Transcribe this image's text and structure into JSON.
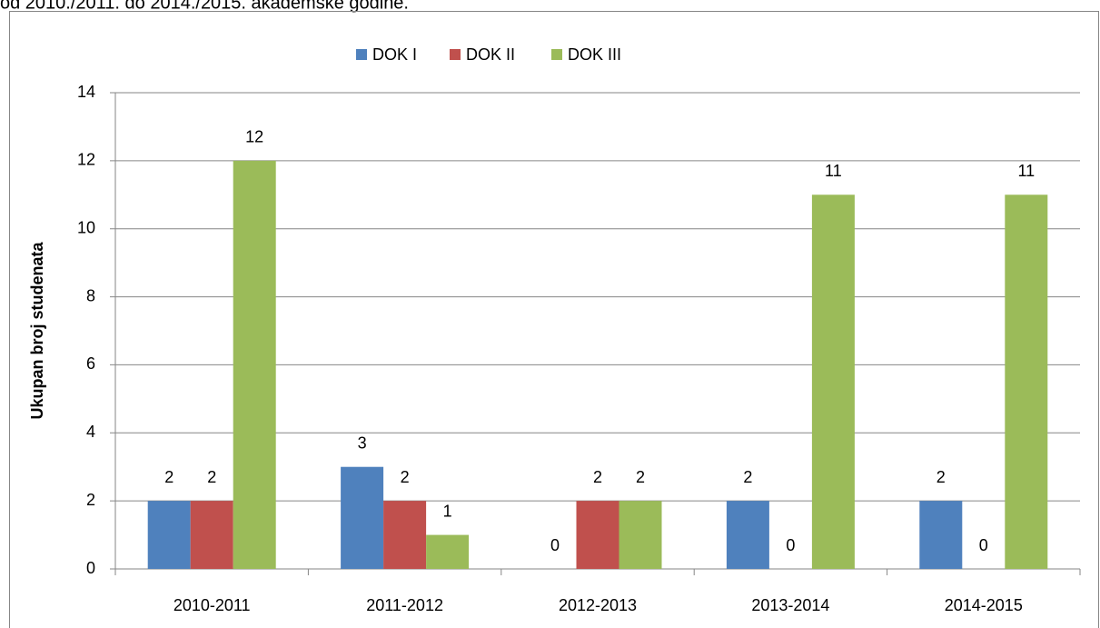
{
  "caption": "od 2010./2011. do 2014./2015. akademske godine.",
  "chart_data": {
    "type": "bar",
    "y_label": "Ukupan broj studenata",
    "categories": [
      "2010-2011",
      "2011-2012",
      "2012-2013",
      "2013-2014",
      "2014-2015"
    ],
    "series": [
      {
        "name": "DOK I",
        "color": "#4f81bd",
        "values": [
          2,
          3,
          0,
          2,
          2
        ]
      },
      {
        "name": "DOK II",
        "color": "#c0504d",
        "values": [
          2,
          2,
          2,
          0,
          0
        ]
      },
      {
        "name": "DOK III",
        "color": "#9bbb59",
        "values": [
          12,
          1,
          2,
          11,
          11
        ]
      }
    ],
    "ylim": [
      0,
      14
    ],
    "yticks": [
      0,
      2,
      4,
      6,
      8,
      10,
      12,
      14
    ],
    "grid": true,
    "legend": "top"
  }
}
